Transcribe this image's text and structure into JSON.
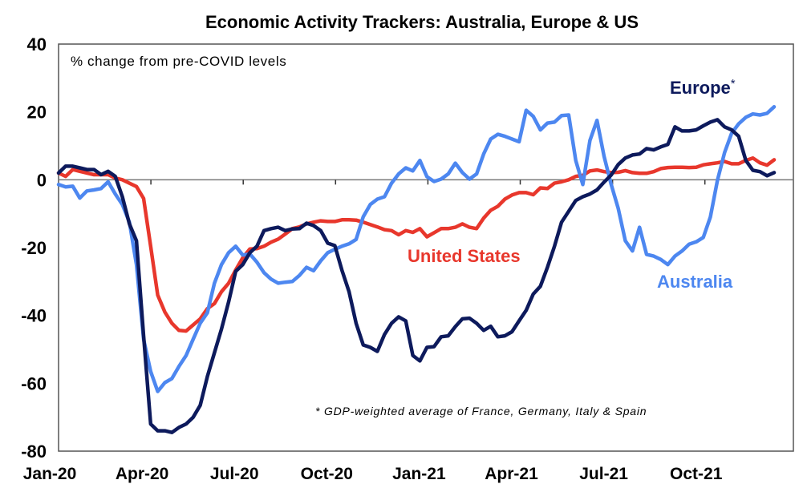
{
  "chart_data": {
    "type": "line",
    "title": "Economic Activity Trackers: Australia, Europe & US",
    "ylabel": "% change from pre-COVID levels",
    "xlabel": "",
    "ylim": [
      -80,
      40
    ],
    "yticks": [
      40,
      20,
      0,
      -20,
      -40,
      -60,
      -80
    ],
    "x_start": "Jan-20",
    "x_unit": "week",
    "x_count": 102,
    "xticks": [
      {
        "label": "Jan-20",
        "week": 0
      },
      {
        "label": "Apr-20",
        "week": 13
      },
      {
        "label": "Jul-20",
        "week": 26
      },
      {
        "label": "Oct-20",
        "week": 39
      },
      {
        "label": "Jan-21",
        "week": 52
      },
      {
        "label": "Apr-21",
        "week": 65
      },
      {
        "label": "Jul-21",
        "week": 78
      },
      {
        "label": "Oct-21",
        "week": 91
      }
    ],
    "grid": false,
    "zero_line": true,
    "annotation": "* GDP-weighted average of France, Germany, Italy & Spain",
    "series": [
      {
        "name": "United States",
        "label": "United States",
        "color": "#e8372c",
        "values": [
          2,
          1,
          3,
          2.5,
          2,
          1.5,
          1.5,
          1.5,
          0.5,
          0,
          -1,
          -2,
          -5.5,
          -19.6,
          -34,
          -39,
          -42.3,
          -44.4,
          -44.6,
          -42.8,
          -41,
          -38,
          -36.5,
          -33,
          -30.5,
          -26.6,
          -23,
          -20.4,
          -20.3,
          -19.6,
          -18.4,
          -17.5,
          -16,
          -14.4,
          -13.9,
          -13,
          -12.5,
          -12.1,
          -12.3,
          -12.3,
          -11.8,
          -11.8,
          -11.9,
          -12.5,
          -13.2,
          -13.9,
          -14.7,
          -15,
          -16.2,
          -15,
          -15.5,
          -14.4,
          -16.8,
          -15.6,
          -14.4,
          -14.4,
          -14,
          -13,
          -14,
          -14.4,
          -11.3,
          -9,
          -7.8,
          -5.7,
          -4.5,
          -3.8,
          -3.8,
          -4.4,
          -2.4,
          -2.6,
          -1,
          -0.6,
          0,
          1,
          1.3,
          2.6,
          2.9,
          2.4,
          2.1,
          2.2,
          2.7,
          2.1,
          1.9,
          1.9,
          2.4,
          3.3,
          3.6,
          3.7,
          3.7,
          3.6,
          3.7,
          4.4,
          4.7,
          5,
          5.4,
          4.7,
          4.7,
          5.7,
          6.4,
          5,
          4.3,
          5.9
        ]
      },
      {
        "name": "Europe",
        "label": "Europe",
        "label_suffix": "*",
        "color": "#0d1a5c",
        "values": [
          2,
          4,
          4,
          3.5,
          3,
          3,
          1.5,
          2.5,
          1,
          -5,
          -13,
          -18,
          -46,
          -72,
          -74,
          -74,
          -74.5,
          -73,
          -72,
          -70,
          -66.5,
          -58,
          -51,
          -44,
          -36,
          -27,
          -25,
          -21.5,
          -19.6,
          -15,
          -14.4,
          -14,
          -15,
          -14.5,
          -14.4,
          -12.8,
          -13.5,
          -15,
          -18.7,
          -19.4,
          -26.7,
          -33,
          -42.3,
          -48.7,
          -49.4,
          -50.6,
          -45.6,
          -42.3,
          -40.4,
          -41.6,
          -51.8,
          -53.4,
          -49.4,
          -49.2,
          -46.3,
          -46,
          -43.3,
          -41,
          -40.8,
          -42.3,
          -44.4,
          -43.2,
          -46.3,
          -46,
          -44.8,
          -41.6,
          -38.5,
          -33.7,
          -31.4,
          -25.8,
          -19.6,
          -12.5,
          -9.3,
          -6.1,
          -5,
          -4.2,
          -3,
          -0.7,
          1.4,
          4.5,
          6.4,
          7.3,
          7.6,
          9.2,
          8.8,
          9.7,
          10.4,
          15.6,
          14.4,
          14.4,
          14.7,
          15.9,
          17,
          17.7,
          15.6,
          14.7,
          12.8,
          5.7,
          2.8,
          2.4,
          1.2,
          2.1
        ]
      },
      {
        "name": "Australia",
        "label": "Australia",
        "color": "#4d87f0",
        "values": [
          -1.4,
          -2.1,
          -1.9,
          -5.4,
          -3.3,
          -3,
          -2.6,
          -0.6,
          -4.2,
          -7.3,
          -12.5,
          -25,
          -47,
          -56.5,
          -62.4,
          -59.8,
          -58.6,
          -55,
          -51.8,
          -47,
          -42.3,
          -39.2,
          -30.5,
          -25,
          -21.5,
          -19.6,
          -22.2,
          -21.9,
          -24.3,
          -27.4,
          -29.3,
          -30.5,
          -30.2,
          -30,
          -28.2,
          -25.8,
          -26.8,
          -23.9,
          -21.5,
          -20.5,
          -19.6,
          -18.9,
          -17.6,
          -10.9,
          -7.3,
          -5.7,
          -5,
          -1,
          1.7,
          3.5,
          2.6,
          5.7,
          0.9,
          -0.5,
          0.2,
          1.7,
          4.9,
          2.1,
          0.2,
          1.7,
          7.6,
          12,
          13.4,
          12.8,
          12,
          11.2,
          20.5,
          18.7,
          14.7,
          16.7,
          17,
          18.9,
          19.1,
          5.7,
          -1.4,
          11.6,
          17.5,
          6.9,
          -1.4,
          -8.5,
          -18,
          -21,
          -14,
          -22,
          -22.5,
          -23.5,
          -25,
          -22.5,
          -21,
          -19,
          -18.3,
          -17,
          -11,
          -0.2,
          8,
          13.7,
          16.5,
          18.4,
          19.4,
          19.1,
          19.6,
          21.5
        ]
      }
    ]
  }
}
